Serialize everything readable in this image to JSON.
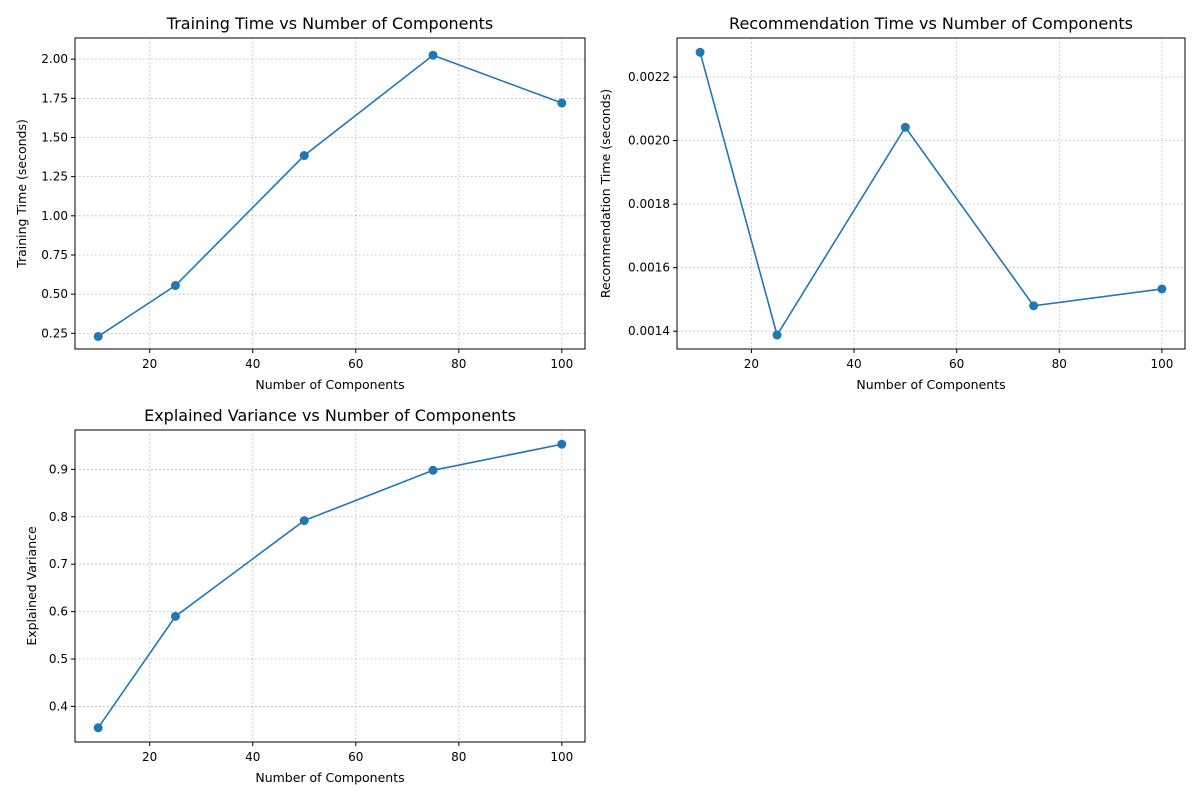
{
  "chart_data": [
    {
      "type": "line",
      "title": "Training Time vs Number of Components",
      "xlabel": "Number of Components",
      "ylabel": "Training Time (seconds)",
      "x": [
        10,
        25,
        50,
        75,
        100
      ],
      "series": [
        {
          "values": [
            0.23,
            0.555,
            1.385,
            2.025,
            1.72
          ],
          "color": "#1f77b4",
          "marker": "circle"
        }
      ],
      "xlim": [
        5.5,
        104.5
      ],
      "ylim": [
        0.15,
        2.135
      ],
      "xticks": [
        20,
        40,
        60,
        80,
        100
      ],
      "xtick_labels": [
        "20",
        "40",
        "60",
        "80",
        "100"
      ],
      "yticks": [
        0.25,
        0.5,
        0.75,
        1.0,
        1.25,
        1.5,
        1.75,
        2.0
      ],
      "ytick_labels": [
        "0.25",
        "0.50",
        "0.75",
        "1.00",
        "1.25",
        "1.50",
        "1.75",
        "2.00"
      ],
      "grid": true
    },
    {
      "type": "line",
      "title": "Recommendation Time vs Number of Components",
      "xlabel": "Number of Components",
      "ylabel": "Recommendation Time (seconds)",
      "x": [
        10,
        25,
        50,
        75,
        100
      ],
      "series": [
        {
          "values": [
            0.002278,
            0.001388,
            0.002042,
            0.00148,
            0.001533
          ],
          "color": "#1f77b4",
          "marker": "circle"
        }
      ],
      "xlim": [
        5.5,
        104.5
      ],
      "ylim": [
        0.001344,
        0.002323
      ],
      "xticks": [
        20,
        40,
        60,
        80,
        100
      ],
      "xtick_labels": [
        "20",
        "40",
        "60",
        "80",
        "100"
      ],
      "yticks": [
        0.0014,
        0.0016,
        0.0018,
        0.002,
        0.0022
      ],
      "ytick_labels": [
        "0.0014",
        "0.0016",
        "0.0018",
        "0.0020",
        "0.0022"
      ],
      "grid": true
    },
    {
      "type": "line",
      "title": "Explained Variance vs Number of Components",
      "xlabel": "Number of Components",
      "ylabel": "Explained Variance",
      "x": [
        10,
        25,
        50,
        75,
        100
      ],
      "series": [
        {
          "values": [
            0.355,
            0.59,
            0.792,
            0.898,
            0.953
          ],
          "color": "#1f77b4",
          "marker": "circle"
        }
      ],
      "xlim": [
        5.5,
        104.5
      ],
      "ylim": [
        0.325,
        0.983
      ],
      "xticks": [
        20,
        40,
        60,
        80,
        100
      ],
      "xtick_labels": [
        "20",
        "40",
        "60",
        "80",
        "100"
      ],
      "yticks": [
        0.4,
        0.5,
        0.6,
        0.7,
        0.8,
        0.9
      ],
      "ytick_labels": [
        "0.4",
        "0.5",
        "0.6",
        "0.7",
        "0.8",
        "0.9"
      ],
      "grid": true
    }
  ]
}
